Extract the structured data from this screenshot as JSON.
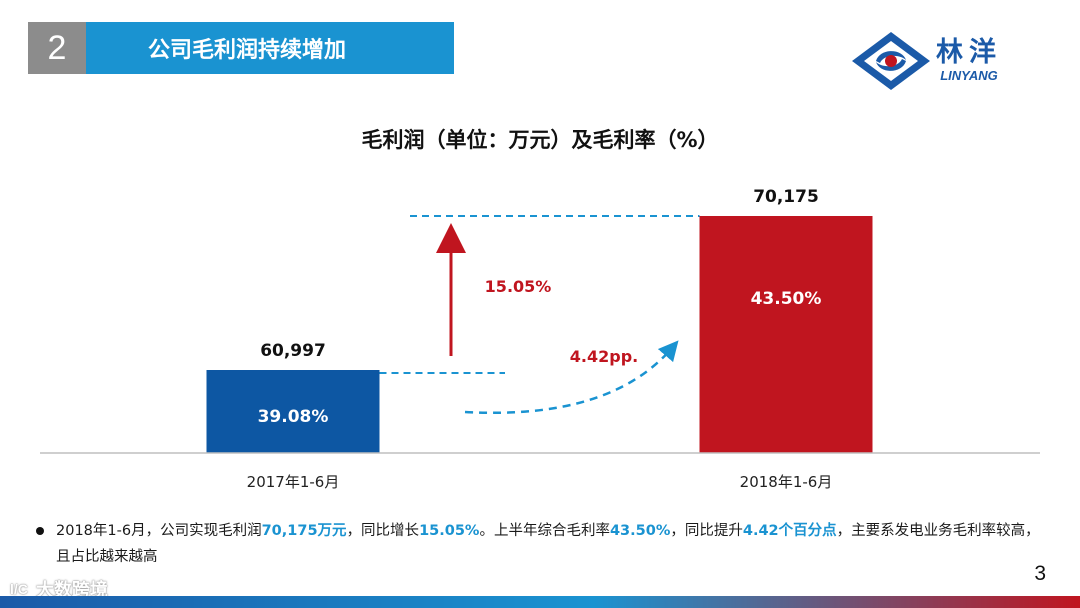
{
  "header": {
    "section_number": "2",
    "title": "公司毛利润持续增加"
  },
  "logo": {
    "cn": "林洋",
    "en": "LINYANG",
    "colors": {
      "blue": "#1b5aa8",
      "red": "#c0151f"
    }
  },
  "chart_data": {
    "type": "bar",
    "title": "毛利润（单位：万元）及毛利率（%）",
    "categories": [
      "2017年1-6月",
      "2018年1-6月"
    ],
    "values": [
      60997,
      70175
    ],
    "value_labels": [
      "60,997",
      "70,175"
    ],
    "bar_inner_labels": [
      "39.08%",
      "43.50%"
    ],
    "bar_colors": [
      "#0d57a3",
      "#c0151f"
    ],
    "ylim": [
      0,
      70175
    ],
    "annotations": {
      "growth": "15.05%",
      "margin_change": "4.42pp."
    }
  },
  "bullet": {
    "p1": "2018年1-6月，公司实现毛利润",
    "h1": "70,175万元",
    "p2": "，同比增长",
    "h2": "15.05%",
    "p3": "。上半年综合毛利率",
    "h3": "43.50%",
    "p4": "，同比提升",
    "h4": "4.42个百分点",
    "p5": "，主要系发电业务毛利率较高，且占比越来越高"
  },
  "page_number": "3",
  "watermark": {
    "icon": "l/C",
    "text": "大数跨境"
  },
  "colors": {
    "accent": "#1a93d1",
    "header_gray": "#8c8c8c",
    "arrow_red": "#c0151f"
  }
}
